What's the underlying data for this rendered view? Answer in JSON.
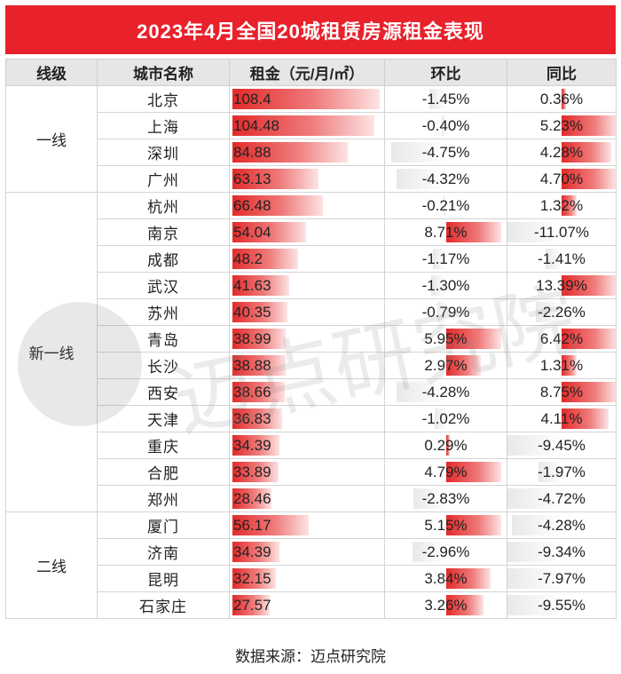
{
  "title": "2023年4月全国20城租赁房源租金表现",
  "headers": {
    "tier": "线级",
    "city": "城市名称",
    "rent": "租金（元/月/㎡）",
    "mom": "环比",
    "yoy": "同比"
  },
  "tiers": [
    {
      "label": "一线",
      "rows": 4
    },
    {
      "label": "新一线",
      "rows": 12
    },
    {
      "label": "二线",
      "rows": 4
    }
  ],
  "footer": "数据来源：迈点研究院",
  "colors": {
    "title_bg": "#e8212b",
    "bar_red": "#e32a2a",
    "header_bg": "#e6e6e6"
  },
  "chart_data": {
    "type": "table",
    "columns": [
      "线级",
      "城市名称",
      "租金（元/月/㎡）",
      "环比",
      "同比"
    ],
    "rent_max": 108.4,
    "rows": [
      {
        "city": "北京",
        "rent": "108.4",
        "mom": "-1.45%",
        "yoy": "0.36%"
      },
      {
        "city": "上海",
        "rent": "104.48",
        "mom": "-0.40%",
        "yoy": "5.23%"
      },
      {
        "city": "深圳",
        "rent": "84.88",
        "mom": "-4.75%",
        "yoy": "4.28%"
      },
      {
        "city": "广州",
        "rent": "63.13",
        "mom": "-4.32%",
        "yoy": "4.70%"
      },
      {
        "city": "杭州",
        "rent": "66.48",
        "mom": "-0.21%",
        "yoy": "1.32%"
      },
      {
        "city": "南京",
        "rent": "54.04",
        "mom": "8.71%",
        "yoy": "-11.07%"
      },
      {
        "city": "成都",
        "rent": "48.2",
        "mom": "-1.17%",
        "yoy": "-1.41%"
      },
      {
        "city": "武汉",
        "rent": "41.63",
        "mom": "-1.30%",
        "yoy": "13.39%"
      },
      {
        "city": "苏州",
        "rent": "40.35",
        "mom": "-0.79%",
        "yoy": "-2.26%"
      },
      {
        "city": "青岛",
        "rent": "38.99",
        "mom": "5.95%",
        "yoy": "6.42%"
      },
      {
        "city": "长沙",
        "rent": "38.88",
        "mom": "2.97%",
        "yoy": "1.31%"
      },
      {
        "city": "西安",
        "rent": "38.66",
        "mom": "-4.28%",
        "yoy": "8.75%"
      },
      {
        "city": "天津",
        "rent": "36.83",
        "mom": "-1.02%",
        "yoy": "4.11%"
      },
      {
        "city": "重庆",
        "rent": "34.39",
        "mom": "0.29%",
        "yoy": "-9.45%"
      },
      {
        "city": "合肥",
        "rent": "33.89",
        "mom": "4.79%",
        "yoy": "-1.97%"
      },
      {
        "city": "郑州",
        "rent": "28.46",
        "mom": "-2.83%",
        "yoy": "-4.72%"
      },
      {
        "city": "厦门",
        "rent": "56.17",
        "mom": "5.15%",
        "yoy": "-4.28%"
      },
      {
        "city": "济南",
        "rent": "34.39",
        "mom": "-2.96%",
        "yoy": "-9.34%"
      },
      {
        "city": "昆明",
        "rent": "32.15",
        "mom": "3.84%",
        "yoy": "-7.97%"
      },
      {
        "city": "石家庄",
        "rent": "27.57",
        "mom": "3.26%",
        "yoy": "-9.55%"
      }
    ]
  }
}
